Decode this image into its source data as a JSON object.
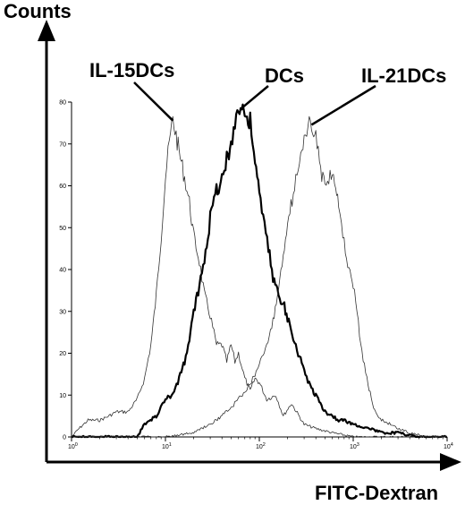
{
  "chart_data": {
    "type": "line",
    "title": "",
    "xlabel": "FITC-Dextran",
    "ylabel": "Counts",
    "x_scale": "log",
    "xlim": [
      1,
      10000
    ],
    "ylim": [
      0,
      80
    ],
    "grid": false,
    "x_ticks": [
      {
        "value": 1,
        "base": "10",
        "exp": "0"
      },
      {
        "value": 10,
        "base": "10",
        "exp": "1"
      },
      {
        "value": 100,
        "base": "10",
        "exp": "2"
      },
      {
        "value": 1000,
        "base": "10",
        "exp": "3"
      },
      {
        "value": 10000,
        "base": "10",
        "exp": "4"
      }
    ],
    "y_ticks": [
      "0",
      "10",
      "20",
      "30",
      "40",
      "50",
      "60",
      "70",
      "80"
    ],
    "series": [
      {
        "name": "IL-15DCs",
        "emphasis": "thin",
        "points": [
          [
            1.0,
            0
          ],
          [
            1.2,
            2
          ],
          [
            1.5,
            4
          ],
          [
            2,
            4
          ],
          [
            2.5,
            5
          ],
          [
            3,
            6
          ],
          [
            4,
            6
          ],
          [
            5,
            9
          ],
          [
            6,
            14
          ],
          [
            7,
            22
          ],
          [
            8,
            34
          ],
          [
            9,
            48
          ],
          [
            10,
            62
          ],
          [
            11,
            70
          ],
          [
            12,
            76
          ],
          [
            13,
            72
          ],
          [
            14,
            68
          ],
          [
            16,
            62
          ],
          [
            18,
            56
          ],
          [
            20,
            48
          ],
          [
            23,
            42
          ],
          [
            26,
            34
          ],
          [
            30,
            29
          ],
          [
            35,
            22
          ],
          [
            40,
            22
          ],
          [
            45,
            18
          ],
          [
            50,
            22
          ],
          [
            55,
            18
          ],
          [
            60,
            20
          ],
          [
            70,
            14
          ],
          [
            80,
            11
          ],
          [
            90,
            14
          ],
          [
            100,
            13
          ],
          [
            120,
            9
          ],
          [
            150,
            10
          ],
          [
            180,
            5
          ],
          [
            220,
            8
          ],
          [
            300,
            3
          ],
          [
            400,
            2
          ],
          [
            600,
            1
          ],
          [
            1000,
            0
          ],
          [
            10000,
            0
          ]
        ]
      },
      {
        "name": "DCs",
        "emphasis": "bold",
        "points": [
          [
            1.0,
            0
          ],
          [
            5,
            0
          ],
          [
            6,
            3
          ],
          [
            8,
            5
          ],
          [
            10,
            9
          ],
          [
            12,
            10
          ],
          [
            14,
            14
          ],
          [
            16,
            18
          ],
          [
            18,
            23
          ],
          [
            20,
            30
          ],
          [
            23,
            36
          ],
          [
            26,
            43
          ],
          [
            30,
            52
          ],
          [
            35,
            59
          ],
          [
            40,
            62
          ],
          [
            45,
            66
          ],
          [
            50,
            70
          ],
          [
            55,
            76
          ],
          [
            60,
            78
          ],
          [
            65,
            79
          ],
          [
            70,
            77
          ],
          [
            80,
            75
          ],
          [
            90,
            66
          ],
          [
            100,
            58
          ],
          [
            110,
            52
          ],
          [
            125,
            45
          ],
          [
            140,
            38
          ],
          [
            160,
            34
          ],
          [
            180,
            32
          ],
          [
            200,
            28
          ],
          [
            230,
            24
          ],
          [
            260,
            20
          ],
          [
            300,
            16
          ],
          [
            350,
            12
          ],
          [
            400,
            10
          ],
          [
            500,
            6
          ],
          [
            600,
            5
          ],
          [
            700,
            4
          ],
          [
            800,
            4
          ],
          [
            1000,
            3
          ],
          [
            1500,
            2
          ],
          [
            2000,
            1
          ],
          [
            3000,
            1
          ],
          [
            5000,
            0
          ],
          [
            10000,
            0
          ]
        ]
      },
      {
        "name": "IL-21DCs",
        "emphasis": "thin",
        "points": [
          [
            1.0,
            0
          ],
          [
            10,
            0
          ],
          [
            20,
            1
          ],
          [
            30,
            3
          ],
          [
            40,
            5
          ],
          [
            50,
            7
          ],
          [
            60,
            9
          ],
          [
            70,
            11
          ],
          [
            80,
            13
          ],
          [
            90,
            15
          ],
          [
            100,
            17
          ],
          [
            120,
            22
          ],
          [
            140,
            28
          ],
          [
            160,
            35
          ],
          [
            180,
            44
          ],
          [
            200,
            52
          ],
          [
            230,
            58
          ],
          [
            260,
            64
          ],
          [
            300,
            70
          ],
          [
            330,
            74
          ],
          [
            360,
            75
          ],
          [
            400,
            72
          ],
          [
            450,
            64
          ],
          [
            500,
            60
          ],
          [
            550,
            62
          ],
          [
            600,
            64
          ],
          [
            650,
            60
          ],
          [
            700,
            56
          ],
          [
            750,
            50
          ],
          [
            800,
            46
          ],
          [
            900,
            40
          ],
          [
            1000,
            36
          ],
          [
            1100,
            30
          ],
          [
            1200,
            22
          ],
          [
            1400,
            14
          ],
          [
            1600,
            8
          ],
          [
            1800,
            5
          ],
          [
            2000,
            4
          ],
          [
            2500,
            3
          ],
          [
            3000,
            2
          ],
          [
            4000,
            1
          ],
          [
            6000,
            0
          ],
          [
            10000,
            0
          ]
        ]
      }
    ],
    "annotations": [
      {
        "text": "IL-15DCs",
        "series": "IL-15DCs"
      },
      {
        "text": "DCs",
        "series": "DCs"
      },
      {
        "text": "IL-21DCs",
        "series": "IL-21DCs"
      }
    ]
  }
}
